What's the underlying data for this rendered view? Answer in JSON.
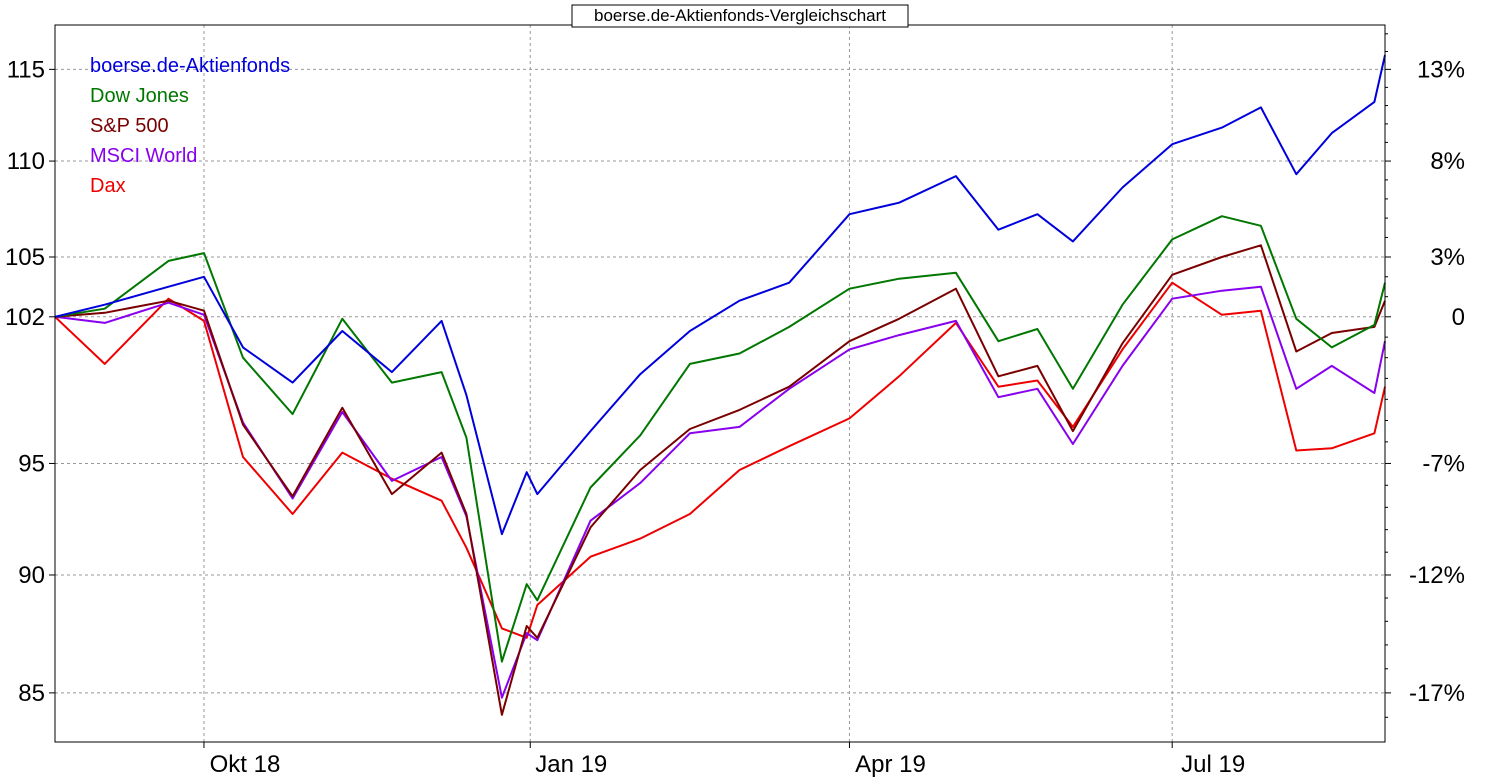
{
  "chart_data": {
    "type": "line",
    "title": "boerse.de-Aktienfonds-Vergleichschart",
    "x_range": [
      "2018-08-20",
      "2019-08-30"
    ],
    "x_ticks": [
      {
        "date": "2018-10-01",
        "label": "Okt 18"
      },
      {
        "date": "2019-01-01",
        "label": "Jan 19"
      },
      {
        "date": "2019-04-01",
        "label": "Apr 19"
      },
      {
        "date": "2019-07-01",
        "label": "Jul 19"
      }
    ],
    "y_left": {
      "scale": "log",
      "ticks": [
        85,
        90,
        95,
        102,
        105,
        110,
        115
      ],
      "range": [
        83,
        117.5
      ]
    },
    "y_right_ticks": [
      "13%",
      "8%",
      "3%",
      "0",
      "-7%",
      "-12%",
      "-17%"
    ],
    "grid": true,
    "legend_position": "top-left",
    "series": [
      {
        "name": "boerse.de-Aktienfonds",
        "color": "#0000dd",
        "points": [
          [
            "2018-08-20",
            102
          ],
          [
            "2018-09-03",
            102.6
          ],
          [
            "2018-09-17",
            103.3
          ],
          [
            "2018-10-01",
            104
          ],
          [
            "2018-10-12",
            100.5
          ],
          [
            "2018-10-26",
            98.8
          ],
          [
            "2018-11-09",
            101.3
          ],
          [
            "2018-11-23",
            99.3
          ],
          [
            "2018-12-07",
            101.8
          ],
          [
            "2018-12-14",
            98.2
          ],
          [
            "2018-12-24",
            91.8
          ],
          [
            "2018-12-31",
            94.6
          ],
          [
            "2019-01-03",
            93.6
          ],
          [
            "2019-01-18",
            96.5
          ],
          [
            "2019-02-01",
            99.2
          ],
          [
            "2019-02-15",
            101.3
          ],
          [
            "2019-03-01",
            102.8
          ],
          [
            "2019-03-15",
            103.7
          ],
          [
            "2019-04-01",
            107.2
          ],
          [
            "2019-04-15",
            107.8
          ],
          [
            "2019-05-01",
            109.2
          ],
          [
            "2019-05-13",
            106.4
          ],
          [
            "2019-05-24",
            107.2
          ],
          [
            "2019-06-03",
            105.8
          ],
          [
            "2019-06-17",
            108.6
          ],
          [
            "2019-07-01",
            110.9
          ],
          [
            "2019-07-15",
            111.8
          ],
          [
            "2019-07-26",
            112.9
          ],
          [
            "2019-08-05",
            109.3
          ],
          [
            "2019-08-15",
            111.5
          ],
          [
            "2019-08-27",
            113.2
          ],
          [
            "2019-08-30",
            115.8
          ]
        ]
      },
      {
        "name": "Dow Jones",
        "color": "#007700",
        "points": [
          [
            "2018-08-20",
            102
          ],
          [
            "2018-09-03",
            102.4
          ],
          [
            "2018-09-21",
            104.8
          ],
          [
            "2018-10-01",
            105.2
          ],
          [
            "2018-10-12",
            100
          ],
          [
            "2018-10-26",
            97.3
          ],
          [
            "2018-11-09",
            101.9
          ],
          [
            "2018-11-23",
            98.8
          ],
          [
            "2018-12-07",
            99.3
          ],
          [
            "2018-12-14",
            96.2
          ],
          [
            "2018-12-24",
            86.3
          ],
          [
            "2018-12-31",
            89.6
          ],
          [
            "2019-01-03",
            88.9
          ],
          [
            "2019-01-18",
            93.9
          ],
          [
            "2019-02-01",
            96.3
          ],
          [
            "2019-02-15",
            99.7
          ],
          [
            "2019-03-01",
            100.2
          ],
          [
            "2019-03-15",
            101.5
          ],
          [
            "2019-04-01",
            103.4
          ],
          [
            "2019-04-15",
            103.9
          ],
          [
            "2019-05-01",
            104.2
          ],
          [
            "2019-05-13",
            100.8
          ],
          [
            "2019-05-24",
            101.4
          ],
          [
            "2019-06-03",
            98.5
          ],
          [
            "2019-06-17",
            102.6
          ],
          [
            "2019-07-01",
            105.9
          ],
          [
            "2019-07-15",
            107.1
          ],
          [
            "2019-07-26",
            106.6
          ],
          [
            "2019-08-05",
            101.9
          ],
          [
            "2019-08-15",
            100.5
          ],
          [
            "2019-08-27",
            101.6
          ],
          [
            "2019-08-30",
            103.7
          ]
        ]
      },
      {
        "name": "S&P 500",
        "color": "#7a0000",
        "points": [
          [
            "2018-08-20",
            102
          ],
          [
            "2018-09-03",
            102.2
          ],
          [
            "2018-09-21",
            102.8
          ],
          [
            "2018-10-01",
            102.3
          ],
          [
            "2018-10-12",
            96.8
          ],
          [
            "2018-10-26",
            93.5
          ],
          [
            "2018-11-09",
            97.6
          ],
          [
            "2018-11-23",
            93.6
          ],
          [
            "2018-12-07",
            95.5
          ],
          [
            "2018-12-14",
            92.7
          ],
          [
            "2018-12-24",
            84.1
          ],
          [
            "2018-12-31",
            87.8
          ],
          [
            "2019-01-03",
            87.3
          ],
          [
            "2019-01-18",
            92.1
          ],
          [
            "2019-02-01",
            94.7
          ],
          [
            "2019-02-15",
            96.6
          ],
          [
            "2019-03-01",
            97.5
          ],
          [
            "2019-03-15",
            98.6
          ],
          [
            "2019-04-01",
            100.8
          ],
          [
            "2019-04-15",
            101.9
          ],
          [
            "2019-05-01",
            103.4
          ],
          [
            "2019-05-13",
            99.1
          ],
          [
            "2019-05-24",
            99.6
          ],
          [
            "2019-06-03",
            96.5
          ],
          [
            "2019-06-17",
            100.7
          ],
          [
            "2019-07-01",
            104.1
          ],
          [
            "2019-07-15",
            105
          ],
          [
            "2019-07-26",
            105.6
          ],
          [
            "2019-08-05",
            100.3
          ],
          [
            "2019-08-15",
            101.2
          ],
          [
            "2019-08-27",
            101.5
          ],
          [
            "2019-08-30",
            102.8
          ]
        ]
      },
      {
        "name": "MSCI World",
        "color": "#8800ee",
        "points": [
          [
            "2018-08-20",
            102
          ],
          [
            "2018-09-03",
            101.7
          ],
          [
            "2018-09-21",
            102.7
          ],
          [
            "2018-10-01",
            102.1
          ],
          [
            "2018-10-12",
            96.9
          ],
          [
            "2018-10-26",
            93.4
          ],
          [
            "2018-11-09",
            97.4
          ],
          [
            "2018-11-23",
            94.2
          ],
          [
            "2018-12-07",
            95.3
          ],
          [
            "2018-12-14",
            92.6
          ],
          [
            "2018-12-24",
            84.8
          ],
          [
            "2018-12-31",
            87.5
          ],
          [
            "2019-01-03",
            87.2
          ],
          [
            "2019-01-18",
            92.4
          ],
          [
            "2019-02-01",
            94.1
          ],
          [
            "2019-02-15",
            96.4
          ],
          [
            "2019-03-01",
            96.7
          ],
          [
            "2019-03-15",
            98.5
          ],
          [
            "2019-04-01",
            100.4
          ],
          [
            "2019-04-15",
            101.1
          ],
          [
            "2019-05-01",
            101.8
          ],
          [
            "2019-05-13",
            98.1
          ],
          [
            "2019-05-24",
            98.5
          ],
          [
            "2019-06-03",
            95.9
          ],
          [
            "2019-06-17",
            99.6
          ],
          [
            "2019-07-01",
            102.9
          ],
          [
            "2019-07-15",
            103.3
          ],
          [
            "2019-07-26",
            103.5
          ],
          [
            "2019-08-05",
            98.5
          ],
          [
            "2019-08-15",
            99.6
          ],
          [
            "2019-08-27",
            98.3
          ],
          [
            "2019-08-30",
            100.8
          ]
        ]
      },
      {
        "name": "Dax",
        "color": "#ee0000",
        "points": [
          [
            "2018-08-20",
            102
          ],
          [
            "2018-09-03",
            99.7
          ],
          [
            "2018-09-21",
            102.9
          ],
          [
            "2018-10-01",
            101.8
          ],
          [
            "2018-10-12",
            95.3
          ],
          [
            "2018-10-26",
            92.7
          ],
          [
            "2018-11-09",
            95.5
          ],
          [
            "2018-11-23",
            94.3
          ],
          [
            "2018-12-07",
            93.3
          ],
          [
            "2018-12-14",
            91.2
          ],
          [
            "2018-12-24",
            87.7
          ],
          [
            "2018-12-31",
            87.3
          ],
          [
            "2019-01-03",
            88.7
          ],
          [
            "2019-01-18",
            90.8
          ],
          [
            "2019-02-01",
            91.6
          ],
          [
            "2019-02-15",
            92.7
          ],
          [
            "2019-03-01",
            94.7
          ],
          [
            "2019-03-15",
            95.8
          ],
          [
            "2019-04-01",
            97.1
          ],
          [
            "2019-04-15",
            99.1
          ],
          [
            "2019-05-01",
            101.7
          ],
          [
            "2019-05-13",
            98.6
          ],
          [
            "2019-05-24",
            98.9
          ],
          [
            "2019-06-03",
            96.7
          ],
          [
            "2019-06-17",
            100.4
          ],
          [
            "2019-07-01",
            103.7
          ],
          [
            "2019-07-15",
            102.1
          ],
          [
            "2019-07-26",
            102.3
          ],
          [
            "2019-08-05",
            95.6
          ],
          [
            "2019-08-15",
            95.7
          ],
          [
            "2019-08-27",
            96.4
          ],
          [
            "2019-08-30",
            98.6
          ]
        ]
      }
    ]
  }
}
